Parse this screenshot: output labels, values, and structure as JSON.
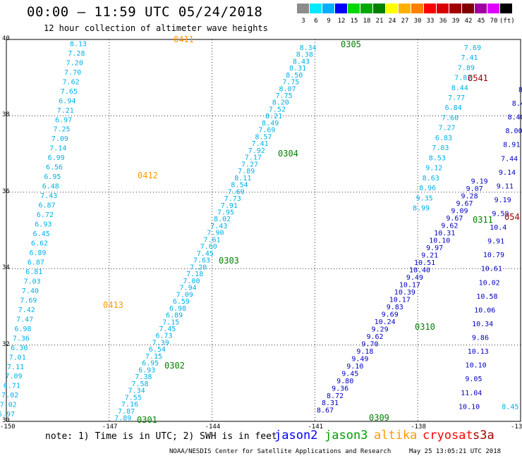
{
  "header": {
    "title": "00:00 – 11:59 UTC 05/24/2018",
    "subtitle": "12 hour collection of altimeter wave heights"
  },
  "color_scale": {
    "labels": [
      "3",
      "6",
      "9",
      "12",
      "15",
      "18",
      "21",
      "24",
      "27",
      "30",
      "33",
      "36",
      "39",
      "42",
      "45",
      "70",
      "(ft)"
    ],
    "colors": [
      "#8c8c8c",
      "#00e8ff",
      "#00b0ff",
      "#0000ff",
      "#00d800",
      "#00a800",
      "#008000",
      "#ffff00",
      "#ffb000",
      "#ff8000",
      "#ff0000",
      "#d80000",
      "#a00000",
      "#800000",
      "#a000a0",
      "#e000ff",
      "#000000"
    ]
  },
  "axes": {
    "y_labels": [
      "40",
      "38",
      "36",
      "34",
      "32",
      "30"
    ],
    "x_labels": [
      "-150",
      "-147",
      "-144",
      "-141",
      "-138",
      "-13"
    ]
  },
  "map": {
    "region": {
      "lat_range": [
        30,
        40
      ],
      "lon_range": [
        -150,
        -135
      ]
    },
    "tracks": [
      {
        "satellite": "altika",
        "color": "#00b0e8",
        "lon": [
          -150,
          -147.9
        ],
        "lat": [
          30.2,
          39.9
        ],
        "values": [
          "6.97",
          "7.02",
          "7.02",
          "6.71",
          "7.09",
          "7.11",
          "7.01",
          "6.30",
          "7.36",
          "6.98",
          "7.47",
          "7.42",
          "7.69",
          "7.40",
          "7.03",
          "6.81",
          "6.87",
          "6.89",
          "6.62",
          "6.45",
          "6.93",
          "6.72",
          "6.87",
          "7.43",
          "6.48",
          "6.95",
          "6.56",
          "6.99",
          "7.14",
          "7.09",
          "7.25",
          "6.97",
          "7.21",
          "6.94",
          "7.65",
          "7.62",
          "7.70",
          "7.20",
          "7.28",
          "8.13"
        ]
      },
      {
        "satellite": "jason3",
        "color": "#00b0e8",
        "lon": [
          -146.6,
          -141.2
        ],
        "lat": [
          30.1,
          39.8
        ],
        "values": [
          "7.89",
          "7.87",
          "7.16",
          "7.55",
          "7.34",
          "7.58",
          "7.38",
          "6.93",
          "6.95",
          "7.15",
          "6.54",
          "7.39",
          "6.73",
          "7.45",
          "7.15",
          "6.89",
          "6.98",
          "6.59",
          "7.09",
          "7.94",
          "7.00",
          "7.18",
          "7.20",
          "7.63",
          "7.45",
          "7.60",
          "7.61",
          "7.90",
          "7.43",
          "8.02",
          "7.95",
          "7.91",
          "7.73",
          "7.69",
          "8.54",
          "8.11",
          "7.89",
          "7.27",
          "7.17",
          "7.92",
          "7.41",
          "8.57",
          "7.69",
          "8.49",
          "8.21",
          "7.52",
          "8.20",
          "7.75",
          "8.07",
          "7.75",
          "8.50",
          "8.31",
          "8.43",
          "8.38",
          "8.34"
        ]
      },
      {
        "satellite": "jason2",
        "color": "#0000c0",
        "lon": [
          -140.7,
          -136.2
        ],
        "lat": [
          30.3,
          36.3
        ],
        "values": [
          "8.67",
          "8.31",
          "8.72",
          "9.36",
          "9.80",
          "9.45",
          "9.10",
          "9.49",
          "9.18",
          "9.70",
          "9.62",
          "9.29",
          "10.24",
          "9.69",
          "9.83",
          "10.17",
          "10.39",
          "10.17",
          "9.49",
          "10.40",
          "10.51",
          "9.21",
          "9.97",
          "10.10",
          "10.31",
          "9.62",
          "9.67",
          "9.09",
          "9.67",
          "9.28",
          "9.07",
          "9.19"
        ]
      },
      {
        "satellite": "jason3",
        "color": "#00b0e8",
        "lon": [
          -137.9,
          -136.4
        ],
        "lat": [
          35.6,
          39.8
        ],
        "values": [
          "8.99",
          "9.35",
          "8.96",
          "8.63",
          "9.12",
          "8.53",
          "7.03",
          "6.83",
          "7.27",
          "7.60",
          "6.84",
          "7.77",
          "8.44",
          "7.82",
          "7.89",
          "7.41",
          "7.69"
        ]
      },
      {
        "satellite": "jason3",
        "color": "#0000c0",
        "lon": [
          -136.5,
          -135.0
        ],
        "lat": [
          30.4,
          38.7
        ],
        "values": [
          "10.10",
          "11.04",
          "9.05",
          "10.10",
          "10.13",
          "9.86",
          "10.34",
          "10.06",
          "10.58",
          "10.02",
          "10.61",
          "10.79",
          "9.91",
          "10.4",
          "9.59",
          "9.19",
          "9.11",
          "9.14",
          "7.44",
          "8.91",
          "8.00",
          "8.40",
          "8.4",
          "8"
        ]
      },
      {
        "satellite": "cryosat",
        "color": "#00b0e8",
        "lon": [
          -135.3,
          -135.3
        ],
        "lat": [
          30.4,
          30.4
        ],
        "values": [
          "8.45"
        ]
      }
    ],
    "pass_labels": [
      {
        "text": "0411",
        "color": "#ff9900"
      },
      {
        "text": "0412",
        "color": "#ff9900"
      },
      {
        "text": "0413",
        "color": "#ff9900"
      },
      {
        "text": "0305",
        "color": "#008000"
      },
      {
        "text": "0304",
        "color": "#008000"
      },
      {
        "text": "0303",
        "color": "#008000"
      },
      {
        "text": "0302",
        "color": "#008000"
      },
      {
        "text": "0301",
        "color": "#008000"
      },
      {
        "text": "0310",
        "color": "#008000"
      },
      {
        "text": "0309",
        "color": "#008000"
      },
      {
        "text": "0311",
        "color": "#008000"
      },
      {
        "text": "0541",
        "color": "#a00000"
      },
      {
        "text": "054",
        "color": "#a00000"
      }
    ]
  },
  "footer": {
    "note": "note: 1) Time is in UTC; 2) SWH is in feet",
    "legend": [
      {
        "name": "jason2",
        "color": "#0000ff"
      },
      {
        "name": "jason3",
        "color": "#00a000"
      },
      {
        "name": "altika",
        "color": "#ff9900"
      },
      {
        "name": "cryosat",
        "color": "#ff0000"
      },
      {
        "name": "s3a",
        "color": "#a00000"
      }
    ],
    "credit": "NOAA/NESDIS Center for Satellite Applications and Research",
    "timestamp": "May 25 13:05:21 UTC 2018"
  }
}
